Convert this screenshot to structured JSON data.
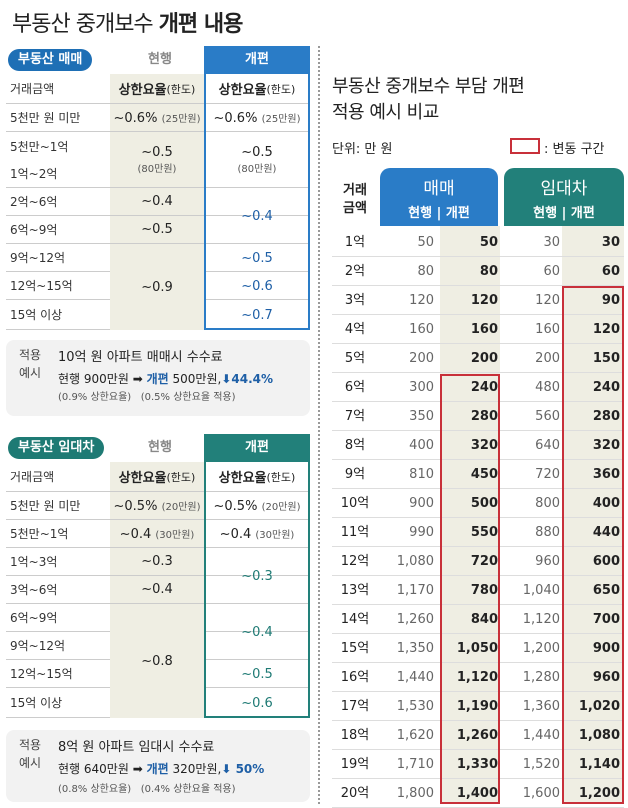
{
  "title": {
    "prefix": "부동산 중개보수",
    "bold": "개편 내용"
  },
  "sale": {
    "pill": "부동산 매매",
    "current": "현행",
    "revised": "개편",
    "colors": {
      "pill": "#1e6fb5",
      "header": "#2a7cc7",
      "border": "#2a7cc7"
    },
    "header": {
      "col1": "거래금액",
      "col2": "상한요율",
      "col2_sub": "(한도)",
      "col3": "상한요율",
      "col3_sub": "(한도)"
    },
    "rows": [
      "5천만 원 미만",
      "5천만~1억",
      "1억~2억",
      "2억~6억",
      "6억~9억",
      "9억~12억",
      "12억~15억",
      "15억 이상"
    ],
    "current_vals": [
      {
        "rate": "~0.6%",
        "limit": "(25만원)"
      },
      {
        "rate": "~0.5",
        "limit": "(80만원)"
      },
      {
        "rate": "~0.4",
        "limit": ""
      },
      {
        "rate": "~0.5",
        "limit": ""
      },
      {
        "rate": "~0.9",
        "limit": ""
      }
    ],
    "revised_vals": [
      {
        "rate": "~0.6%",
        "limit": "(25만원)"
      },
      {
        "rate": "~0.5",
        "limit": "(80만원)"
      },
      {
        "rate": "~0.4",
        "limit": ""
      },
      {
        "rate": "~0.5",
        "limit": ""
      },
      {
        "rate": "~0.6",
        "limit": ""
      },
      {
        "rate": "~0.7",
        "limit": ""
      }
    ],
    "example": {
      "tag1": "적용",
      "tag2": "예시",
      "line1": "10억 원 아파트 매매시 수수료",
      "cur": "현행 900만원",
      "arrow": "➡",
      "new_label": "개편",
      "new_val": "500만원,",
      "pct": "⬇44.4%",
      "note1": "(0.9% 상한요율)",
      "note2": "(0.5% 상한요율 적용)"
    }
  },
  "rent": {
    "pill": "부동산 임대차",
    "current": "현행",
    "revised": "개편",
    "colors": {
      "pill": "#1e7a74",
      "header": "#22807a",
      "border": "#22807a"
    },
    "header": {
      "col1": "거래금액",
      "col2": "상한요율",
      "col2_sub": "(한도)",
      "col3": "상한요율",
      "col3_sub": "(한도)"
    },
    "rows": [
      "5천만 원 미만",
      "5천만~1억",
      "1억~3억",
      "3억~6억",
      "6억~9억",
      "9억~12억",
      "12억~15억",
      "15억 이상"
    ],
    "current_vals": [
      {
        "rate": "~0.5%",
        "limit": "(20만원)"
      },
      {
        "rate": "~0.4",
        "limit": "(30만원)"
      },
      {
        "rate": "~0.3",
        "limit": ""
      },
      {
        "rate": "~0.4",
        "limit": ""
      },
      {
        "rate": "~0.8",
        "limit": ""
      }
    ],
    "revised_vals": [
      {
        "rate": "~0.5%",
        "limit": "(20만원)"
      },
      {
        "rate": "~0.4",
        "limit": "(30만원)"
      },
      {
        "rate": "~0.3",
        "limit": ""
      },
      {
        "rate": "~0.4",
        "limit": ""
      },
      {
        "rate": "~0.5",
        "limit": ""
      },
      {
        "rate": "~0.6",
        "limit": ""
      }
    ],
    "example": {
      "tag1": "적용",
      "tag2": "예시",
      "line1": "8억 원 아파트 임대시 수수료",
      "cur": "현행 640만원",
      "arrow": "➡",
      "new_label": "개편",
      "new_val": "320만원,",
      "pct": "⬇ 50%",
      "note1": "(0.8% 상한요율)",
      "note2": "(0.4% 상한요율 적용)"
    }
  },
  "compare": {
    "title_line1": "부동산 중개보수 부담 개편",
    "title_line2": "적용 예시 비교",
    "unit": "단위: 만 원",
    "legend": ": 변동 구간",
    "legend_color": "#c8303a",
    "col_amount": "거래\n금액",
    "sale_label": "매매",
    "rent_label": "임대차",
    "sub_label": "현행  |  개편",
    "rows": [
      [
        "1억",
        "50",
        "50",
        "30",
        "30"
      ],
      [
        "2억",
        "80",
        "80",
        "60",
        "60"
      ],
      [
        "3억",
        "120",
        "120",
        "120",
        "90"
      ],
      [
        "4억",
        "160",
        "160",
        "160",
        "120"
      ],
      [
        "5억",
        "200",
        "200",
        "200",
        "150"
      ],
      [
        "6억",
        "300",
        "240",
        "480",
        "240"
      ],
      [
        "7억",
        "350",
        "280",
        "560",
        "280"
      ],
      [
        "8억",
        "400",
        "320",
        "640",
        "320"
      ],
      [
        "9억",
        "810",
        "450",
        "720",
        "360"
      ],
      [
        "10억",
        "900",
        "500",
        "800",
        "400"
      ],
      [
        "11억",
        "990",
        "550",
        "880",
        "440"
      ],
      [
        "12억",
        "1,080",
        "720",
        "960",
        "600"
      ],
      [
        "13억",
        "1,170",
        "780",
        "1,040",
        "650"
      ],
      [
        "14억",
        "1,260",
        "840",
        "1,120",
        "700"
      ],
      [
        "15억",
        "1,350",
        "1,050",
        "1,200",
        "900"
      ],
      [
        "16억",
        "1,440",
        "1,120",
        "1,280",
        "960"
      ],
      [
        "17억",
        "1,530",
        "1,190",
        "1,360",
        "1,020"
      ],
      [
        "18억",
        "1,620",
        "1,260",
        "1,440",
        "1,080"
      ],
      [
        "19억",
        "1,710",
        "1,330",
        "1,520",
        "1,140"
      ],
      [
        "20억",
        "1,800",
        "1,400",
        "1,600",
        "1,200"
      ]
    ]
  }
}
